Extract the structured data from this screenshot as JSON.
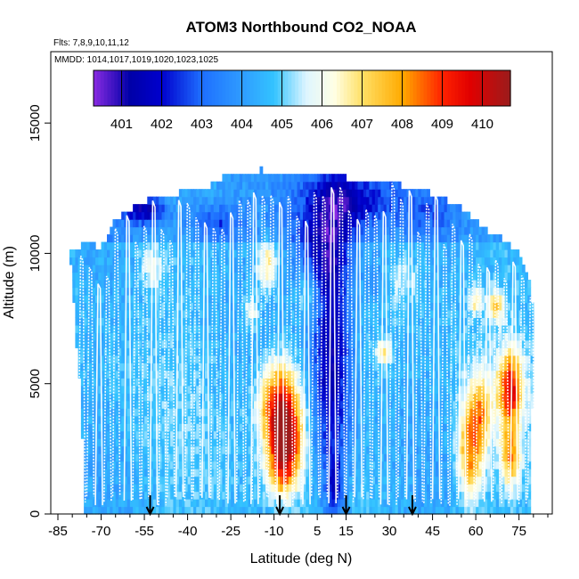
{
  "chart_data": {
    "type": "heatmap",
    "title": "ATOM3 Northbound CO2_NOAA",
    "flights_label": "Flts: 7,8,9,10,11,12",
    "dates_label": "MMDD: 1014,1017,1019,1020,1023,1025",
    "xlabel": "Latitude (deg N)",
    "ylabel": "Altitude (m)",
    "xlim": [
      -85,
      85
    ],
    "ylim": [
      0,
      17500
    ],
    "x_ticks": [
      -85,
      -70,
      -55,
      -40,
      -25,
      -10,
      5,
      15,
      30,
      45,
      60,
      75
    ],
    "x_tick_labels": [
      "-85",
      "-70",
      "-55",
      "-40",
      "-25",
      "-10",
      "5",
      "15",
      "30",
      "45",
      "60",
      "75"
    ],
    "y_ticks": [
      0,
      5000,
      10000,
      15000
    ],
    "y_tick_labels": [
      "0",
      "5000",
      "10000",
      "15000"
    ],
    "colorbar": {
      "labels": [
        "401",
        "402",
        "403",
        "404",
        "405",
        "406",
        "407",
        "408",
        "409",
        "410"
      ],
      "min": 400.3,
      "max": 410.7,
      "stops": [
        {
          "v": 400.3,
          "c": "#8a2be2"
        },
        {
          "v": 401.2,
          "c": "#0000a8"
        },
        {
          "v": 402.0,
          "c": "#0000cd"
        },
        {
          "v": 403.0,
          "c": "#1e6fff"
        },
        {
          "v": 404.0,
          "c": "#2f9cff"
        },
        {
          "v": 404.8,
          "c": "#33c3ff"
        },
        {
          "v": 405.6,
          "c": "#ddf5ff"
        },
        {
          "v": 406.3,
          "c": "#ffffe6"
        },
        {
          "v": 407.0,
          "c": "#ffe066"
        },
        {
          "v": 408.0,
          "c": "#ffaa00"
        },
        {
          "v": 409.0,
          "c": "#ff2200"
        },
        {
          "v": 409.7,
          "c": "#e00000"
        },
        {
          "v": 410.7,
          "c": "#9b1c1c"
        }
      ]
    },
    "envelope": [
      [
        -82,
        10000
      ],
      [
        -75,
        10400
      ],
      [
        -70,
        10200
      ],
      [
        -65,
        11300
      ],
      [
        -60,
        11700
      ],
      [
        -55,
        12000
      ],
      [
        -45,
        12300
      ],
      [
        -35,
        12400
      ],
      [
        -28,
        12900
      ],
      [
        -15,
        13200
      ],
      [
        -5,
        13100
      ],
      [
        5,
        13000
      ],
      [
        15,
        12900
      ],
      [
        25,
        12800
      ],
      [
        35,
        12600
      ],
      [
        45,
        12300
      ],
      [
        55,
        11800
      ],
      [
        62,
        11000
      ],
      [
        70,
        10500
      ],
      [
        75,
        10000
      ],
      [
        79,
        9000
      ]
    ],
    "south_limit_profile": [
      [
        0,
        -76.0
      ],
      [
        1000,
        -76.1
      ],
      [
        2000,
        -76.3
      ],
      [
        3000,
        -76.5
      ],
      [
        4000,
        -77.0
      ],
      [
        5000,
        -77.4
      ],
      [
        6000,
        -78.2
      ],
      [
        7000,
        -78.8
      ],
      [
        8000,
        -79.4
      ],
      [
        9000,
        -79.9
      ],
      [
        10000,
        -80.8
      ]
    ],
    "north_limit_profile": [
      [
        0,
        79.0
      ],
      [
        2000,
        78.5
      ],
      [
        4000,
        79.5
      ],
      [
        6000,
        80.0
      ],
      [
        8000,
        79.5
      ],
      [
        9000,
        78.5
      ]
    ],
    "anomalies": [
      {
        "lat": -8,
        "alt": 4200,
        "slat": 5,
        "salt": 1200,
        "amp": 5.0
      },
      {
        "lat": -6,
        "alt": 2800,
        "slat": 4,
        "salt": 900,
        "amp": 4.3
      },
      {
        "lat": -7,
        "alt": 1500,
        "slat": 4,
        "salt": 700,
        "amp": 2.6
      },
      {
        "lat": -12,
        "alt": 9500,
        "slat": 2.5,
        "salt": 700,
        "amp": 2.6
      },
      {
        "lat": -18,
        "alt": 7800,
        "slat": 2,
        "salt": 500,
        "amp": 1.8
      },
      {
        "lat": 28,
        "alt": 6200,
        "slat": 2,
        "salt": 350,
        "amp": 2.2
      },
      {
        "lat": 58,
        "alt": 2500,
        "slat": 3,
        "salt": 1400,
        "amp": 3.8
      },
      {
        "lat": 62,
        "alt": 4000,
        "slat": 2.5,
        "salt": 1000,
        "amp": 2.6
      },
      {
        "lat": 72,
        "alt": 4800,
        "slat": 3,
        "salt": 1000,
        "amp": 4.8
      },
      {
        "lat": 72,
        "alt": 2200,
        "slat": 2.5,
        "salt": 800,
        "amp": 3.2
      },
      {
        "lat": 67,
        "alt": 8000,
        "slat": 2,
        "salt": 400,
        "amp": 2.4
      },
      {
        "lat": 60,
        "alt": 8200,
        "slat": 1.5,
        "salt": 350,
        "amp": 2.0
      },
      {
        "lat": -52,
        "alt": 9500,
        "slat": 3,
        "salt": 600,
        "amp": 1.4
      },
      {
        "lat": 2,
        "alt": 8500,
        "slat": 3,
        "salt": 800,
        "amp": 1.2
      },
      {
        "lat": 35,
        "alt": 9000,
        "slat": 4,
        "salt": 600,
        "amp": 1.0
      }
    ],
    "depressions": [
      {
        "lat": 10,
        "alt": 6500,
        "slat": 5,
        "salt": 4000,
        "amp": -3.3
      },
      {
        "lat": 11,
        "alt": 1000,
        "slat": 2,
        "salt": 900,
        "amp": -2.0
      },
      {
        "lat": 15,
        "alt": 12000,
        "slat": 12,
        "salt": 800,
        "amp": -2.5
      },
      {
        "lat": 6,
        "alt": 10000,
        "slat": 8,
        "salt": 900,
        "amp": -2.0
      },
      {
        "lat": -55,
        "alt": 11700,
        "slat": 5,
        "salt": 350,
        "amp": -2.6
      },
      {
        "lat": -30,
        "alt": 11200,
        "slat": 6,
        "salt": 450,
        "amp": -1.5
      },
      {
        "lat": 25,
        "alt": 9000,
        "slat": 3,
        "salt": 800,
        "amp": -1.0
      },
      {
        "lat": 45,
        "alt": 11500,
        "slat": 5,
        "salt": 500,
        "amp": -0.8
      }
    ],
    "trajectory_x": [
      -82,
      -78,
      -75,
      -72,
      -69,
      -66,
      -62,
      -59,
      -56,
      -53,
      -50,
      -47,
      -44,
      -41,
      -38,
      -35,
      -32,
      -29,
      -26,
      -23,
      -20,
      -18,
      -15,
      -12,
      -9,
      -6,
      -3,
      0,
      3,
      6,
      9,
      12,
      15,
      18,
      21,
      24,
      27,
      30,
      33,
      36,
      39,
      42,
      45,
      48,
      51,
      54,
      57,
      60,
      63,
      66,
      69,
      72,
      75,
      78
    ],
    "profile_markers": [
      -53,
      -8,
      15,
      38
    ]
  }
}
